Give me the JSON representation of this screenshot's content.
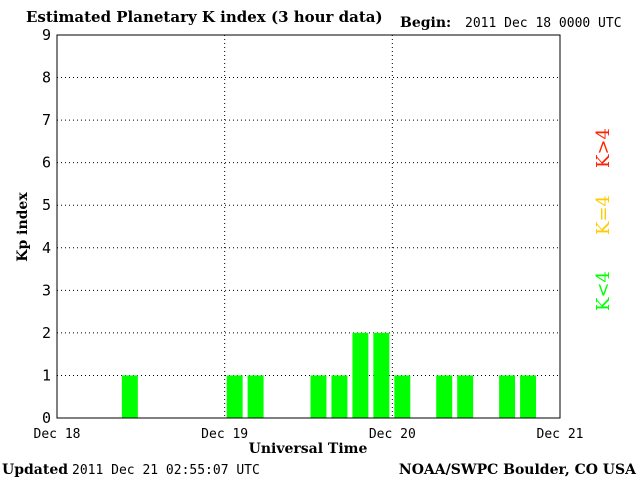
{
  "chart_data": {
    "type": "bar",
    "title": "Estimated Planetary K index (3 hour data)",
    "begin_label": "Begin:",
    "begin_value": "2011 Dec 18 0000 UTC",
    "xlabel": "Universal Time",
    "ylabel": "Kp index",
    "x_ticks": [
      "Dec 18",
      "Dec 19",
      "Dec 20",
      "Dec 21"
    ],
    "y_ticks": [
      "0",
      "1",
      "2",
      "3",
      "4",
      "5",
      "6",
      "7",
      "8",
      "9"
    ],
    "ylim": [
      0,
      9
    ],
    "xlim_hours": [
      0,
      72
    ],
    "bar_interval_hours": 3,
    "grid": true,
    "bars": [
      {
        "start_hour": 9,
        "kp": 1
      },
      {
        "start_hour": 24,
        "kp": 1
      },
      {
        "start_hour": 27,
        "kp": 1
      },
      {
        "start_hour": 36,
        "kp": 1
      },
      {
        "start_hour": 39,
        "kp": 1
      },
      {
        "start_hour": 42,
        "kp": 2
      },
      {
        "start_hour": 45,
        "kp": 2
      },
      {
        "start_hour": 48,
        "kp": 1
      },
      {
        "start_hour": 54,
        "kp": 1
      },
      {
        "start_hour": 57,
        "kp": 1
      },
      {
        "start_hour": 63,
        "kp": 1
      },
      {
        "start_hour": 66,
        "kp": 1
      }
    ],
    "legend": [
      {
        "label": "K>4",
        "color": "#ff2200"
      },
      {
        "label": "K=4",
        "color": "#ffcc00"
      },
      {
        "label": "K<4",
        "color": "#00ff00"
      }
    ],
    "bar_color": "#00ff00"
  },
  "footer": {
    "updated_label": "Updated",
    "updated_value": "2011 Dec 21 02:55:07 UTC",
    "credit": "NOAA/SWPC Boulder, CO USA"
  }
}
